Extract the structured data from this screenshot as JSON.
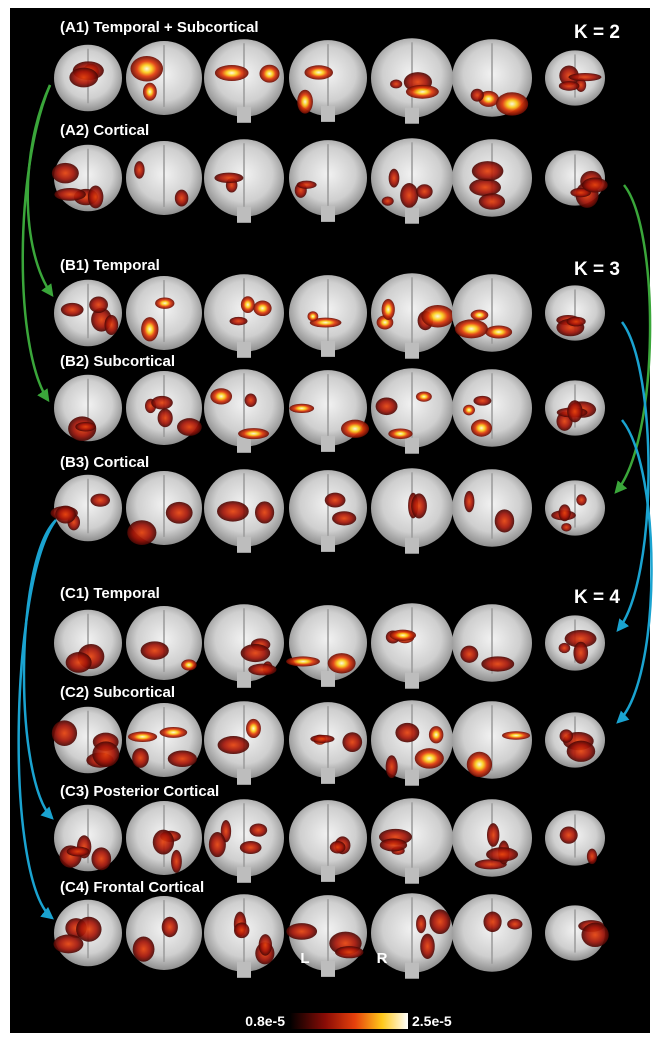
{
  "rows": [
    {
      "label": "(A1) Temporal + Subcortical"
    },
    {
      "label": "(A2) Cortical"
    },
    {
      "label": "(B1) Temporal"
    },
    {
      "label": "(B2) Subcortical"
    },
    {
      "label": "(B3) Cortical"
    },
    {
      "label": "(C1) Temporal"
    },
    {
      "label": "(C2) Subcortical"
    },
    {
      "label": "(C3) Posterior Cortical"
    },
    {
      "label": "(C4) Frontal Cortical"
    }
  ],
  "k_labels": [
    "K = 2",
    "K = 3",
    "K = 4"
  ],
  "orientation": {
    "left": "L",
    "right": "R"
  },
  "colorbar": {
    "min_label": "0.8e-5",
    "max_label": "2.5e-5"
  }
}
